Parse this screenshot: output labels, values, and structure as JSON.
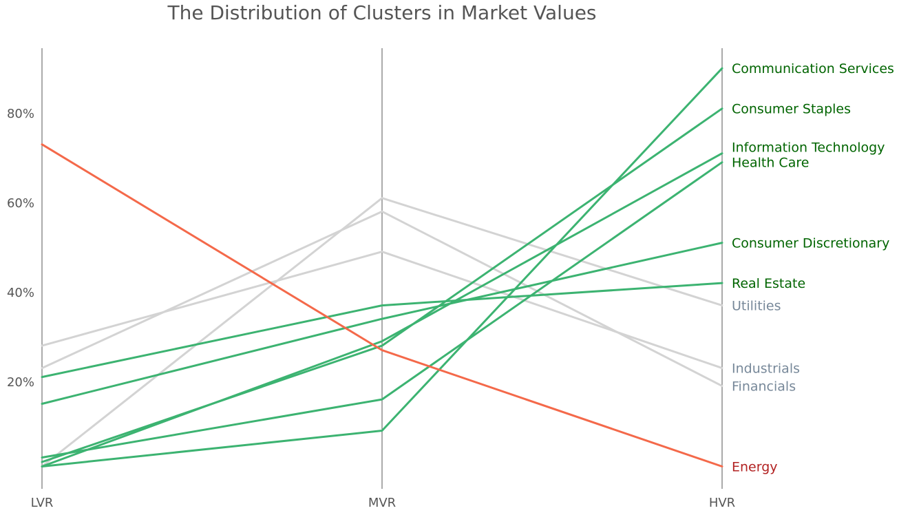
{
  "chart_data": {
    "type": "line",
    "title": "The Distribution of Clusters in Market Values",
    "axes": [
      "LVR",
      "MVR",
      "HVR"
    ],
    "y_ticks": [
      "20%",
      "40%",
      "60%",
      "80%"
    ],
    "y_tick_values": [
      20,
      40,
      60,
      80
    ],
    "ylim": [
      -4,
      94.5
    ],
    "grid": false,
    "colors": {
      "green_line": "#3cb371",
      "green_label": "#006400",
      "red_line": "#f4694a",
      "red_label": "#b22222",
      "gray_line": "#d3d3d3",
      "gray_label": "#778899",
      "axis": "#555555"
    },
    "series": [
      {
        "name": "Communication Services",
        "values": [
          1,
          9,
          90
        ],
        "group": "green"
      },
      {
        "name": "Consumer Staples",
        "values": [
          2,
          28,
          81
        ],
        "group": "green"
      },
      {
        "name": "Information Technology",
        "values": [
          1,
          29,
          71
        ],
        "group": "green"
      },
      {
        "name": "Health Care",
        "values": [
          3,
          16,
          69
        ],
        "group": "green"
      },
      {
        "name": "Consumer Discretionary",
        "values": [
          15,
          34,
          51
        ],
        "group": "green"
      },
      {
        "name": "Real Estate",
        "values": [
          21,
          37,
          42
        ],
        "group": "green"
      },
      {
        "name": "Utilities",
        "values": [
          1,
          61,
          37
        ],
        "group": "gray"
      },
      {
        "name": "Industrials",
        "values": [
          28,
          49,
          23
        ],
        "group": "gray"
      },
      {
        "name": "Financials",
        "values": [
          23,
          58,
          19
        ],
        "group": "gray"
      },
      {
        "name": "Energy",
        "values": [
          73,
          27,
          1
        ],
        "group": "red"
      }
    ],
    "end_labels": [
      {
        "name": "Communication Services",
        "group": "green",
        "value": 90
      },
      {
        "name": "Consumer Staples",
        "group": "green",
        "value": 81
      },
      {
        "name": "Information Technology",
        "group": "green",
        "value": 72.4
      },
      {
        "name": "Health Care",
        "group": "green",
        "value": 69
      },
      {
        "name": "Consumer Discretionary",
        "group": "green",
        "value": 51
      },
      {
        "name": "Real Estate",
        "group": "green",
        "value": 42
      },
      {
        "name": "Utilities",
        "group": "gray",
        "value": 37
      },
      {
        "name": "Industrials",
        "group": "gray",
        "value": 23
      },
      {
        "name": "Financials",
        "group": "gray",
        "value": 19
      },
      {
        "name": "Energy",
        "group": "red",
        "value": 1
      }
    ]
  }
}
